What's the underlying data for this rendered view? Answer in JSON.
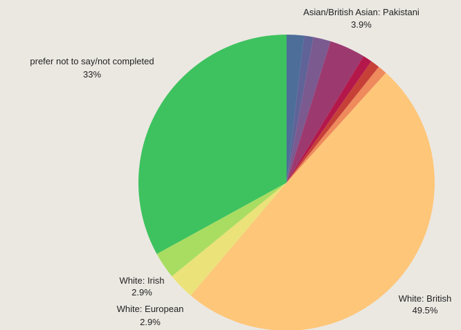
{
  "chart_data": {
    "type": "pie",
    "start_angle_deg": 0,
    "direction": "clockwise",
    "slices": [
      {
        "name": "",
        "value": 1.9,
        "color": "#4d6e99"
      },
      {
        "name": "",
        "value": 1.0,
        "color": "#5f6397"
      },
      {
        "name": "",
        "value": 1.9,
        "color": "#7b5a90"
      },
      {
        "name": "Asian/British Asian: Pakistani",
        "value": 3.9,
        "color": "#9c3a70"
      },
      {
        "name": "",
        "value": 1.0,
        "color": "#b4184b"
      },
      {
        "name": "",
        "value": 1.0,
        "color": "#c74038"
      },
      {
        "name": "",
        "value": 1.0,
        "color": "#ee8a5c"
      },
      {
        "name": "White: British",
        "value": 49.5,
        "color": "#fec679"
      },
      {
        "name": "White: European",
        "value": 2.9,
        "color": "#ebe27a"
      },
      {
        "name": "White: Irish",
        "value": 2.9,
        "color": "#a9dd62"
      },
      {
        "name": "prefer not to say/not completed",
        "value": 33,
        "color": "#3ec25f"
      }
    ],
    "labels": [
      {
        "name": "Asian/British Asian: Pakistani",
        "pct": "3.9%"
      },
      {
        "name": "prefer not to say/not completed",
        "pct": "33%"
      },
      {
        "name": "White: Irish",
        "pct": "2.9%"
      },
      {
        "name": "White: European",
        "pct": "2.9%"
      },
      {
        "name": "White: British",
        "pct": "49.5%"
      }
    ]
  }
}
